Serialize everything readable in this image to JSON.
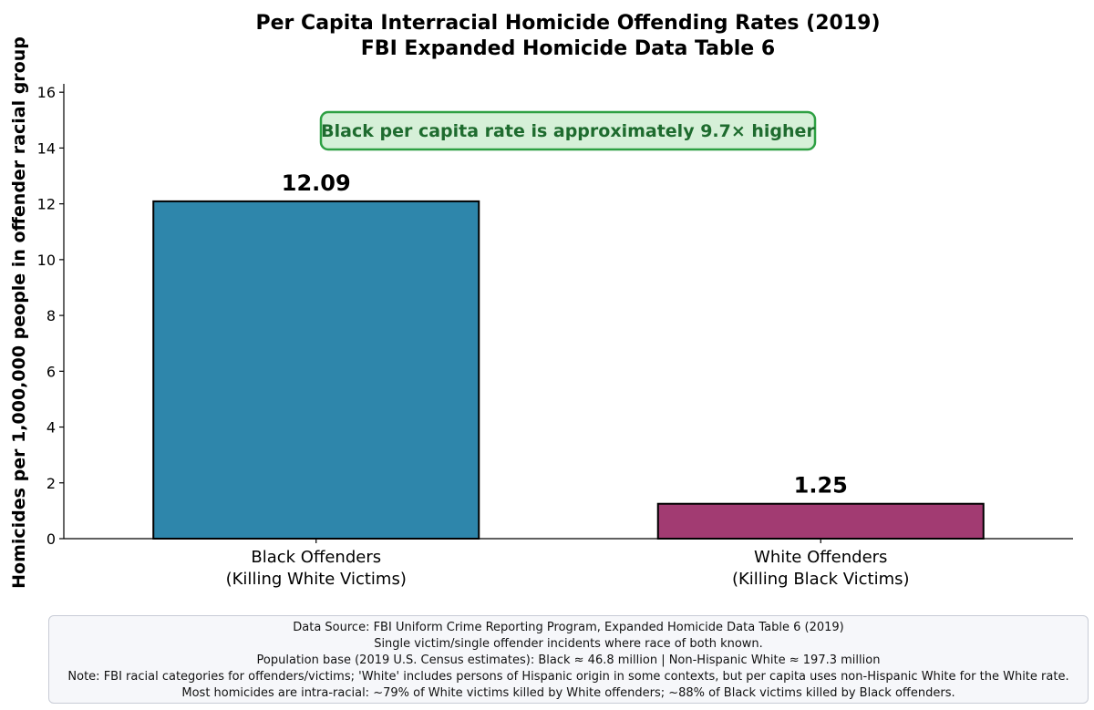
{
  "chart_data": {
    "type": "bar",
    "title": [
      "Per Capita Interracial Homicide Offending Rates (2019)",
      "FBI Expanded Homicide Data Table 6"
    ],
    "ylabel": "Homicides per 1,000,000 people in offender racial group",
    "xlabel": "",
    "categories": [
      [
        "Black Offenders",
        "(Killing White Victims)"
      ],
      [
        "White Offenders",
        "(Killing Black Victims)"
      ]
    ],
    "values": [
      12.09,
      1.25
    ],
    "value_labels": [
      "12.09",
      "1.25"
    ],
    "colors": [
      "#2e86ab",
      "#a23b72"
    ],
    "ylim": [
      0,
      16.3
    ],
    "yticks": [
      0,
      2,
      4,
      6,
      8,
      10,
      12,
      14,
      16
    ],
    "grid": false,
    "annotation": {
      "text": "Black per capita rate is approximately 9.7× higher",
      "text_color": "#1e6b2e",
      "border_color": "#2ea043",
      "fill_color": "#d6f0d8"
    }
  },
  "footnote": [
    "Data Source: FBI Uniform Crime Reporting Program, Expanded Homicide Data Table 6 (2019)",
    "Single victim/single offender incidents where race of both known.",
    "Population base (2019 U.S. Census estimates): Black ≈ 46.8 million | Non-Hispanic White ≈ 197.3 million",
    "Note: FBI racial categories for offenders/victims; 'White' includes persons of Hispanic origin in some contexts, but per capita uses non-Hispanic White for the White rate.",
    "Most homicides are intra-racial: ~79% of White victims killed by White offenders; ~88% of Black victims killed by Black offenders."
  ]
}
